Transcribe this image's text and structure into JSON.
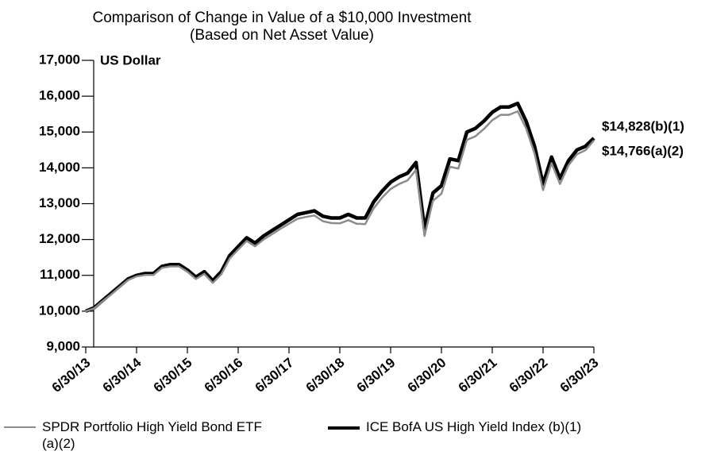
{
  "chart_data": {
    "type": "line",
    "title": "Comparison of Change in Value of a $10,000 Investment",
    "subtitle": "(Based on Net Asset Value)",
    "y_axis_label": "US Dollar",
    "categories": [
      "6/30/13",
      null,
      null,
      null,
      null,
      null,
      "6/30/14",
      null,
      null,
      null,
      null,
      null,
      "6/30/15",
      null,
      null,
      null,
      null,
      null,
      "6/30/16",
      null,
      null,
      null,
      null,
      null,
      "6/30/17",
      null,
      null,
      null,
      null,
      null,
      "6/30/18",
      null,
      null,
      null,
      null,
      null,
      "6/30/19",
      null,
      null,
      null,
      null,
      null,
      "6/30/20",
      null,
      null,
      null,
      null,
      null,
      "6/30/21",
      null,
      null,
      null,
      null,
      null,
      "6/30/22",
      null,
      null,
      null,
      null,
      null,
      "6/30/23"
    ],
    "series": [
      {
        "name": "ICE BofA US High Yield Index (b)(1)",
        "color": "#000000",
        "values": [
          10000,
          10100,
          10300,
          10500,
          10700,
          10900,
          11000,
          11050,
          11050,
          11250,
          11300,
          11300,
          11150,
          10950,
          11100,
          10850,
          11100,
          11550,
          11800,
          12050,
          11900,
          12100,
          12250,
          12400,
          12550,
          12700,
          12750,
          12800,
          12650,
          12600,
          12600,
          12700,
          12600,
          12600,
          13050,
          13350,
          13600,
          13750,
          13850,
          14150,
          12300,
          13300,
          13500,
          14250,
          14200,
          15000,
          15100,
          15300,
          15550,
          15700,
          15700,
          15800,
          15300,
          14600,
          13550,
          14300,
          13700,
          14200,
          14500,
          14600,
          14828
        ],
        "value_labels": [
          null,
          null,
          null,
          null,
          null,
          null,
          null,
          null,
          null,
          null,
          null,
          null,
          null,
          null,
          null,
          null,
          null,
          null,
          null,
          null,
          null,
          null,
          null,
          null,
          null,
          null,
          null,
          null,
          null,
          null,
          null,
          null,
          null,
          null,
          null,
          null,
          null,
          null,
          null,
          null,
          null,
          null,
          null,
          null,
          null,
          null,
          null,
          null,
          null,
          null,
          null,
          null,
          null,
          null,
          null,
          null,
          null,
          null,
          null,
          null,
          "$14,828(b)(1)"
        ]
      },
      {
        "name": "SPDR Portfolio High Yield Bond ETF (a)(2)",
        "color": "#8c8c8c",
        "values": [
          10000,
          10080,
          10280,
          10470,
          10670,
          10870,
          10970,
          11010,
          11010,
          11210,
          11250,
          11250,
          11100,
          10900,
          11040,
          10790,
          11030,
          11470,
          11720,
          11960,
          11810,
          12000,
          12150,
          12300,
          12440,
          12580,
          12630,
          12670,
          12510,
          12460,
          12450,
          12540,
          12440,
          12430,
          12870,
          13170,
          13410,
          13550,
          13650,
          13940,
          12100,
          13080,
          13280,
          14030,
          13980,
          14780,
          14880,
          15080,
          15330,
          15480,
          15480,
          15580,
          15100,
          14400,
          13380,
          14130,
          13550,
          14070,
          14380,
          14490,
          14766
        ],
        "value_labels": [
          null,
          null,
          null,
          null,
          null,
          null,
          null,
          null,
          null,
          null,
          null,
          null,
          null,
          null,
          null,
          null,
          null,
          null,
          null,
          null,
          null,
          null,
          null,
          null,
          null,
          null,
          null,
          null,
          null,
          null,
          null,
          null,
          null,
          null,
          null,
          null,
          null,
          null,
          null,
          null,
          null,
          null,
          null,
          null,
          null,
          null,
          null,
          null,
          null,
          null,
          null,
          null,
          null,
          null,
          null,
          null,
          null,
          null,
          null,
          null,
          "$14,766(a)(2)"
        ]
      }
    ],
    "legend_order": [
      1,
      0
    ],
    "ylim": [
      9000,
      17000
    ],
    "yticks": [
      {
        "value": 9000,
        "label": "9,000"
      },
      {
        "value": 10000,
        "label": "10,000"
      },
      {
        "value": 11000,
        "label": "11,000"
      },
      {
        "value": 12000,
        "label": "12,000"
      },
      {
        "value": 13000,
        "label": "13,000"
      },
      {
        "value": 14000,
        "label": "14,000"
      },
      {
        "value": 15000,
        "label": "15,000"
      },
      {
        "value": 16000,
        "label": "16,000"
      },
      {
        "value": 17000,
        "label": "17,000"
      }
    ]
  }
}
